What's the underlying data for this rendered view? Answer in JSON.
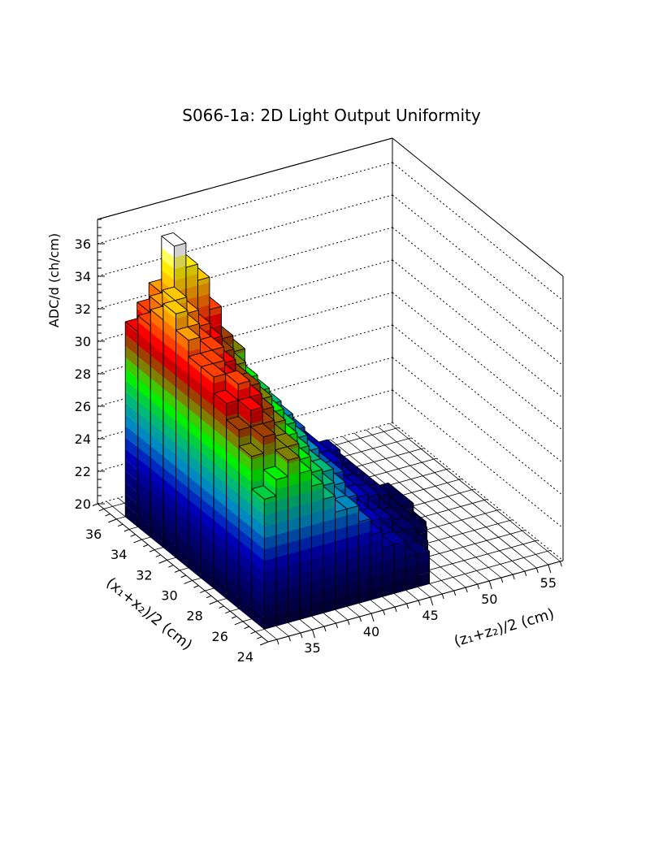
{
  "chart_data": {
    "type": "lego3d",
    "title": "S066-1a: 2D Light Output Uniformity",
    "xlabel": "(x₁+x₂)/2 (cm)",
    "zlabel": "(z₁+z₂)/2 (cm)",
    "ylabel": "ADC/d (ch/cm)",
    "x_range": [
      24,
      37.5
    ],
    "z_range": [
      31.25,
      56.25
    ],
    "value_range": [
      20,
      37.5
    ],
    "x_ticks": [
      "24",
      "26",
      "28",
      "30",
      "32",
      "34",
      "36"
    ],
    "z_ticks": [
      "35",
      "40",
      "45",
      "50",
      "55"
    ],
    "value_ticks": [
      "20",
      "22",
      "24",
      "26",
      "28",
      "30",
      "32",
      "34",
      "36"
    ],
    "x_bin_start": 25,
    "x_bin_width": 1,
    "z_bin_start": 32,
    "z_bin_width": 1,
    "values": [
      [
        28,
        29,
        30,
        29,
        28,
        27,
        26,
        26,
        25,
        24,
        23,
        23,
        22,
        22,
        null,
        null,
        null,
        null
      ],
      [
        30,
        31,
        30,
        30,
        29,
        28,
        27,
        26,
        25,
        24,
        24,
        23,
        22,
        22,
        21,
        null,
        null,
        null
      ],
      [
        31,
        32,
        31,
        30,
        29,
        28,
        27,
        27,
        26,
        25,
        24,
        23,
        23,
        22,
        22,
        21,
        null,
        null
      ],
      [
        32,
        33,
        32,
        31,
        30,
        29,
        28,
        27,
        26,
        25,
        24,
        24,
        23,
        22,
        22,
        21,
        21,
        null
      ],
      [
        33,
        32,
        32,
        31,
        30,
        29,
        28,
        27,
        26,
        25,
        25,
        24,
        23,
        23,
        22,
        21,
        21,
        20.5
      ],
      [
        33,
        33,
        32,
        31,
        31,
        30,
        29,
        28,
        27,
        26,
        25,
        24,
        23,
        23,
        22,
        22,
        21,
        21
      ],
      [
        34,
        33,
        33,
        32,
        31,
        30,
        29,
        28,
        27,
        26,
        25,
        24,
        24,
        23,
        22,
        22,
        21,
        21
      ],
      [
        35,
        34,
        33,
        32,
        31,
        30,
        29,
        28,
        27,
        26,
        25,
        24,
        24,
        23,
        22,
        22,
        21,
        null
      ],
      [
        34,
        35,
        34,
        33,
        32,
        31,
        30,
        29,
        28,
        27,
        26,
        25,
        24,
        23,
        23,
        22,
        null,
        null
      ],
      [
        33,
        34,
        37.5,
        36,
        35,
        33,
        31,
        30,
        28,
        27,
        26,
        25,
        24,
        23,
        null,
        null,
        null,
        null
      ],
      [
        32,
        33,
        34,
        34,
        33,
        31,
        30,
        29,
        27,
        26,
        25,
        null,
        null,
        null,
        null,
        null,
        null,
        null
      ]
    ],
    "palette": [
      "#000040",
      "#000050",
      "#000068",
      "#00007c",
      "#000098",
      "#0000b8",
      "#0028c0",
      "#0058c0",
      "#0088c0",
      "#00a0a0",
      "#00b878",
      "#00d040",
      "#00f000",
      "#40c800",
      "#808000",
      "#a04000",
      "#d00000",
      "#ff0000",
      "#ff4000",
      "#ff7000",
      "#ffa000",
      "#ffc800",
      "#ffec00",
      "#ffff60",
      "#ffffff"
    ]
  }
}
